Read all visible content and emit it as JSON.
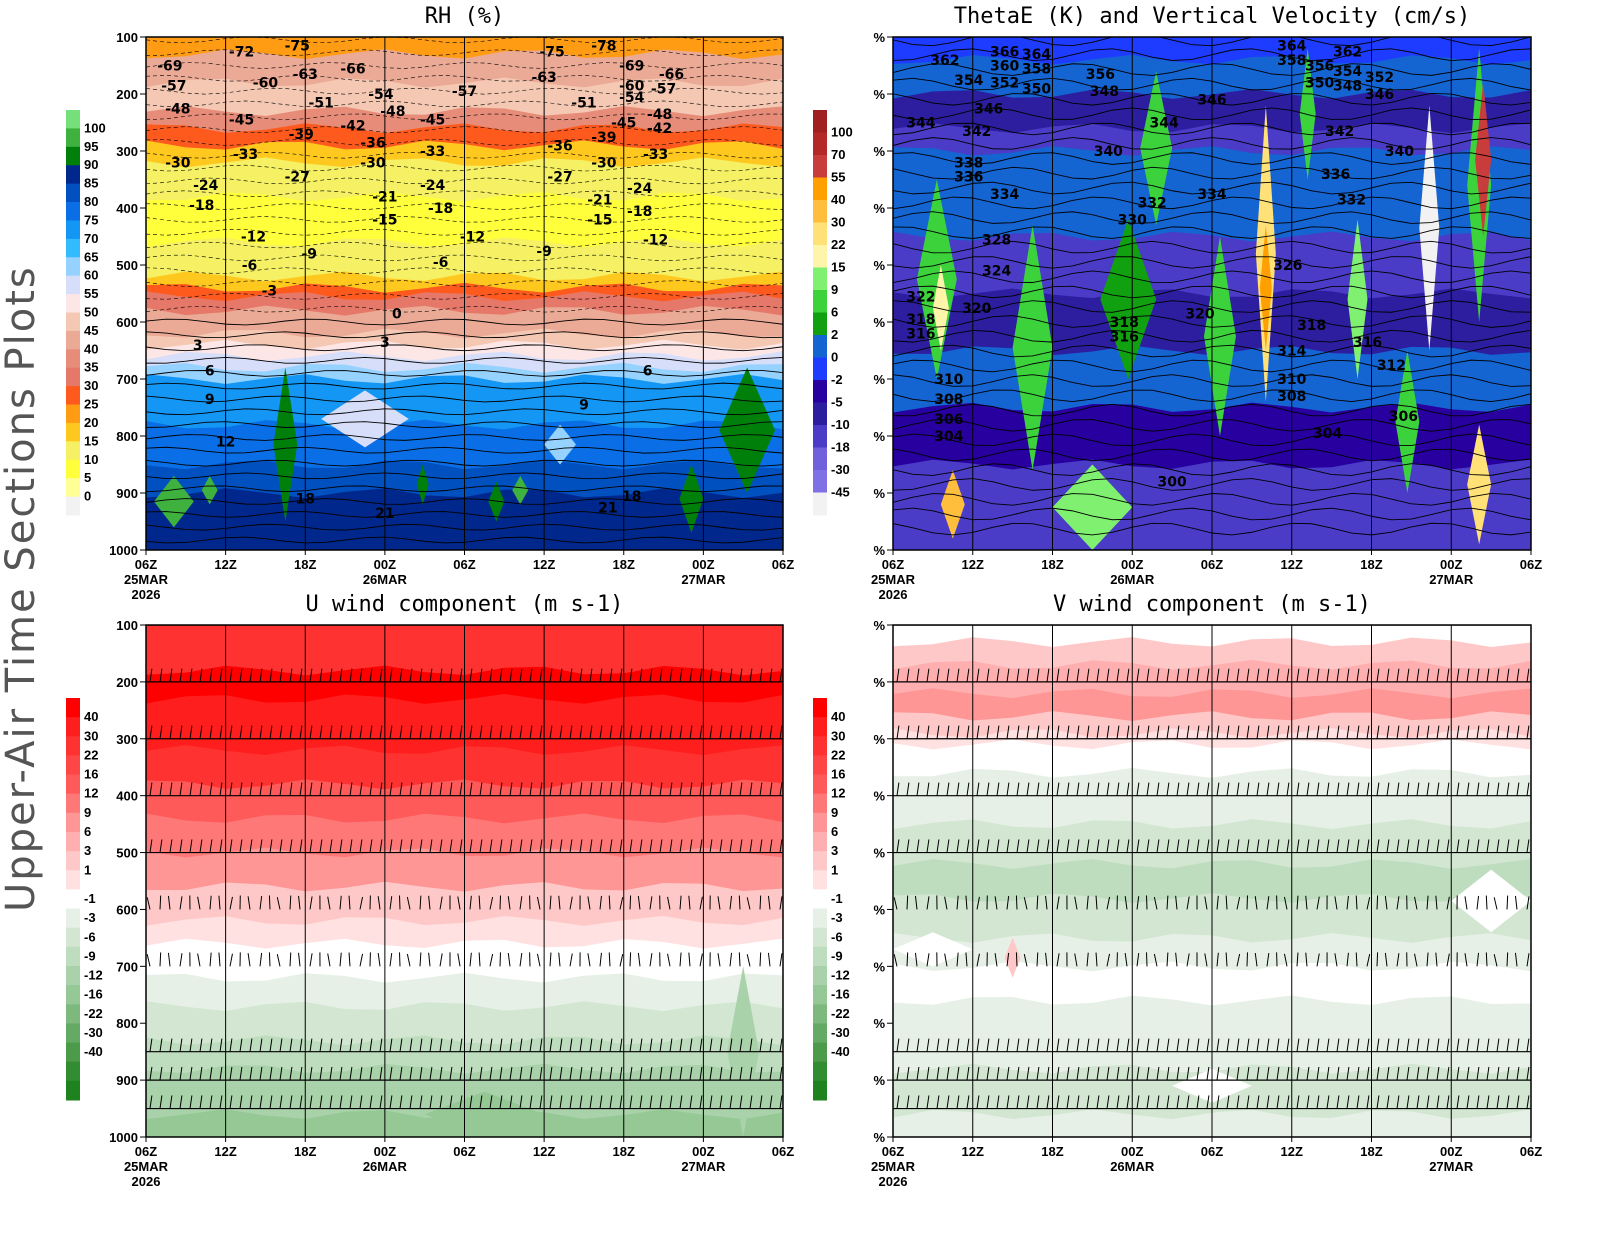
{
  "side_title": "Upper-Air Time Sections Plots",
  "chart_data": [
    {
      "type": "heatmap",
      "title": "RH (%)",
      "y_ticks": [
        "100",
        "200",
        "300",
        "400",
        "500",
        "600",
        "700",
        "800",
        "900",
        "1000"
      ],
      "ylim": [
        100,
        1000
      ],
      "x_ticks": [
        [
          "06Z",
          "25MAR",
          "2026"
        ],
        [
          "12Z"
        ],
        [
          "18Z"
        ],
        [
          "00Z",
          "26MAR"
        ],
        [
          "06Z"
        ],
        [
          "12Z"
        ],
        [
          "18Z"
        ],
        [
          "00Z",
          "27MAR"
        ],
        [
          "06Z"
        ]
      ],
      "colorbar": {
        "levels": [
          "100",
          "95",
          "90",
          "85",
          "80",
          "75",
          "70",
          "65",
          "60",
          "55",
          "50",
          "45",
          "40",
          "35",
          "30",
          "25",
          "20",
          "15",
          "10",
          "5",
          "0"
        ],
        "colors": [
          "#75e07a",
          "#3fb13f",
          "#00800a",
          "#00288c",
          "#0050c0",
          "#0a6fe6",
          "#1496f5",
          "#32bbff",
          "#96d2ff",
          "#d6defa",
          "#fde6e6",
          "#f5c8b4",
          "#ebaa96",
          "#e68c78",
          "#e6786a",
          "#ff5a1e",
          "#ff9c14",
          "#ffc81e",
          "#f5f064",
          "#ffff3c",
          "#ffff96",
          "#f2f2f2"
        ]
      },
      "contour_labels": [
        {
          "t": 0.3,
          "p": 150,
          "v": "-69"
        },
        {
          "t": 1.2,
          "p": 125,
          "v": "-72"
        },
        {
          "t": 1.9,
          "p": 115,
          "v": "-75"
        },
        {
          "t": 1.5,
          "p": 180,
          "v": "-60"
        },
        {
          "t": 2.0,
          "p": 165,
          "v": "-63"
        },
        {
          "t": 2.6,
          "p": 155,
          "v": "-66"
        },
        {
          "t": 0.35,
          "p": 185,
          "v": "-57"
        },
        {
          "t": 0.4,
          "p": 225,
          "v": "-48"
        },
        {
          "t": 2.2,
          "p": 215,
          "v": "-51"
        },
        {
          "t": 2.95,
          "p": 200,
          "v": "-54"
        },
        {
          "t": 3.1,
          "p": 230,
          "v": "-48"
        },
        {
          "t": 1.2,
          "p": 245,
          "v": "-45"
        },
        {
          "t": 2.6,
          "p": 255,
          "v": "-42"
        },
        {
          "t": 3.6,
          "p": 245,
          "v": "-45"
        },
        {
          "t": 4.0,
          "p": 195,
          "v": "-57"
        },
        {
          "t": 5.1,
          "p": 125,
          "v": "-75"
        },
        {
          "t": 5.75,
          "p": 115,
          "v": "-78"
        },
        {
          "t": 5.0,
          "p": 170,
          "v": "-63"
        },
        {
          "t": 6.1,
          "p": 150,
          "v": "-69"
        },
        {
          "t": 5.5,
          "p": 215,
          "v": "-51"
        },
        {
          "t": 6.1,
          "p": 185,
          "v": "-60"
        },
        {
          "t": 6.1,
          "p": 205,
          "v": "-54"
        },
        {
          "t": 6.5,
          "p": 190,
          "v": "-57"
        },
        {
          "t": 6.6,
          "p": 165,
          "v": "-66"
        },
        {
          "t": 6.45,
          "p": 235,
          "v": "-48"
        },
        {
          "t": 6.0,
          "p": 250,
          "v": "-45"
        },
        {
          "t": 6.45,
          "p": 260,
          "v": "-42"
        },
        {
          "t": 0.4,
          "p": 320,
          "v": "-30"
        },
        {
          "t": 1.25,
          "p": 305,
          "v": "-33"
        },
        {
          "t": 1.95,
          "p": 270,
          "v": "-39"
        },
        {
          "t": 2.85,
          "p": 285,
          "v": "-36"
        },
        {
          "t": 2.85,
          "p": 320,
          "v": "-30"
        },
        {
          "t": 3.6,
          "p": 300,
          "v": "-33"
        },
        {
          "t": 5.2,
          "p": 290,
          "v": "-36"
        },
        {
          "t": 5.75,
          "p": 275,
          "v": "-39"
        },
        {
          "t": 5.75,
          "p": 320,
          "v": "-30"
        },
        {
          "t": 6.4,
          "p": 305,
          "v": "-33"
        },
        {
          "t": 0.75,
          "p": 360,
          "v": "-24"
        },
        {
          "t": 1.9,
          "p": 345,
          "v": "-27"
        },
        {
          "t": 3.0,
          "p": 380,
          "v": "-21"
        },
        {
          "t": 3.6,
          "p": 360,
          "v": "-24"
        },
        {
          "t": 5.2,
          "p": 345,
          "v": "-27"
        },
        {
          "t": 5.7,
          "p": 385,
          "v": "-21"
        },
        {
          "t": 6.2,
          "p": 365,
          "v": "-24"
        },
        {
          "t": 0.7,
          "p": 395,
          "v": "-18"
        },
        {
          "t": 3.0,
          "p": 420,
          "v": "-15"
        },
        {
          "t": 3.7,
          "p": 400,
          "v": "-18"
        },
        {
          "t": 5.7,
          "p": 420,
          "v": "-15"
        },
        {
          "t": 6.2,
          "p": 405,
          "v": "-18"
        },
        {
          "t": 1.35,
          "p": 450,
          "v": "-12"
        },
        {
          "t": 2.05,
          "p": 480,
          "v": "-9"
        },
        {
          "t": 4.1,
          "p": 450,
          "v": "-12"
        },
        {
          "t": 5.0,
          "p": 475,
          "v": "-9"
        },
        {
          "t": 6.4,
          "p": 455,
          "v": "-12"
        },
        {
          "t": 1.3,
          "p": 500,
          "v": "-6"
        },
        {
          "t": 3.7,
          "p": 495,
          "v": "-6"
        },
        {
          "t": 1.55,
          "p": 545,
          "v": "-3"
        },
        {
          "t": 3.15,
          "p": 585,
          "v": "0"
        },
        {
          "t": 0.65,
          "p": 640,
          "v": "3"
        },
        {
          "t": 3.0,
          "p": 635,
          "v": "3"
        },
        {
          "t": 0.8,
          "p": 685,
          "v": "6"
        },
        {
          "t": 6.3,
          "p": 685,
          "v": "6"
        },
        {
          "t": 0.8,
          "p": 735,
          "v": "9"
        },
        {
          "t": 5.5,
          "p": 745,
          "v": "9"
        },
        {
          "t": 1.0,
          "p": 810,
          "v": "12"
        },
        {
          "t": 2.0,
          "p": 910,
          "v": "18"
        },
        {
          "t": 6.1,
          "p": 905,
          "v": "18"
        },
        {
          "t": 3.0,
          "p": 935,
          "v": "21"
        },
        {
          "t": 5.8,
          "p": 925,
          "v": "21"
        }
      ]
    },
    {
      "type": "heatmap",
      "title": "ThetaE (K) and Vertical Velocity (cm/s)",
      "y_ticks": [
        "%",
        "%",
        "%",
        "%",
        "%",
        "%",
        "%",
        "%",
        "%",
        "%"
      ],
      "ylim": [
        100,
        1000
      ],
      "x_ticks": [
        [
          "06Z",
          "25MAR",
          "2026"
        ],
        [
          "12Z"
        ],
        [
          "18Z"
        ],
        [
          "00Z",
          "26MAR"
        ],
        [
          "06Z"
        ],
        [
          "12Z"
        ],
        [
          "18Z"
        ],
        [
          "00Z",
          "27MAR"
        ],
        [
          "06Z"
        ]
      ],
      "colorbar": {
        "levels": [
          "100",
          "70",
          "55",
          "40",
          "30",
          "22",
          "15",
          "9",
          "6",
          "2",
          "0",
          "-2",
          "-5",
          "-10",
          "-18",
          "-30",
          "-45"
        ],
        "colors": [
          "#a02020",
          "#b42828",
          "#c83c3c",
          "#ffa000",
          "#ffbe3c",
          "#ffe178",
          "#fff5aa",
          "#80f070",
          "#3cd23c",
          "#10a010",
          "#1464d2",
          "#1e3cff",
          "#2800a0",
          "#2d1ea0",
          "#4b3cc8",
          "#7060dc",
          "#8070e6",
          "#f2f2f2"
        ]
      },
      "contour_labels": [
        {
          "t": 0.65,
          "p": 140,
          "v": "362"
        },
        {
          "t": 1.4,
          "p": 125,
          "v": "366"
        },
        {
          "t": 1.8,
          "p": 130,
          "v": "364"
        },
        {
          "t": 1.4,
          "p": 150,
          "v": "360"
        },
        {
          "t": 1.8,
          "p": 155,
          "v": "358"
        },
        {
          "t": 0.95,
          "p": 175,
          "v": "354"
        },
        {
          "t": 1.4,
          "p": 180,
          "v": "352"
        },
        {
          "t": 1.8,
          "p": 190,
          "v": "350"
        },
        {
          "t": 2.6,
          "p": 165,
          "v": "356"
        },
        {
          "t": 2.65,
          "p": 195,
          "v": "348"
        },
        {
          "t": 1.2,
          "p": 225,
          "v": "346"
        },
        {
          "t": 0.35,
          "p": 250,
          "v": "344"
        },
        {
          "t": 1.05,
          "p": 265,
          "v": "342"
        },
        {
          "t": 3.4,
          "p": 250,
          "v": "344"
        },
        {
          "t": 2.7,
          "p": 300,
          "v": "340"
        },
        {
          "t": 0.95,
          "p": 320,
          "v": "338"
        },
        {
          "t": 0.95,
          "p": 345,
          "v": "336"
        },
        {
          "t": 1.4,
          "p": 375,
          "v": "334"
        },
        {
          "t": 4.0,
          "p": 210,
          "v": "346"
        },
        {
          "t": 5.0,
          "p": 115,
          "v": "364"
        },
        {
          "t": 5.0,
          "p": 140,
          "v": "358"
        },
        {
          "t": 5.35,
          "p": 150,
          "v": "356"
        },
        {
          "t": 5.7,
          "p": 125,
          "v": "362"
        },
        {
          "t": 5.7,
          "p": 160,
          "v": "354"
        },
        {
          "t": 6.1,
          "p": 170,
          "v": "352"
        },
        {
          "t": 5.35,
          "p": 180,
          "v": "350"
        },
        {
          "t": 5.7,
          "p": 185,
          "v": "348"
        },
        {
          "t": 6.1,
          "p": 200,
          "v": "346"
        },
        {
          "t": 5.6,
          "p": 265,
          "v": "342"
        },
        {
          "t": 6.35,
          "p": 300,
          "v": "340"
        },
        {
          "t": 5.55,
          "p": 340,
          "v": "336"
        },
        {
          "t": 5.75,
          "p": 385,
          "v": "332"
        },
        {
          "t": 3.25,
          "p": 390,
          "v": "332"
        },
        {
          "t": 3.0,
          "p": 420,
          "v": "330"
        },
        {
          "t": 4.0,
          "p": 375,
          "v": "334"
        },
        {
          "t": 1.3,
          "p": 455,
          "v": "328"
        },
        {
          "t": 1.3,
          "p": 510,
          "v": "324"
        },
        {
          "t": 0.35,
          "p": 555,
          "v": "322"
        },
        {
          "t": 1.05,
          "p": 575,
          "v": "320"
        },
        {
          "t": 0.35,
          "p": 595,
          "v": "318"
        },
        {
          "t": 0.35,
          "p": 620,
          "v": "316"
        },
        {
          "t": 4.95,
          "p": 500,
          "v": "326"
        },
        {
          "t": 3.85,
          "p": 585,
          "v": "320"
        },
        {
          "t": 2.9,
          "p": 600,
          "v": "318"
        },
        {
          "t": 2.9,
          "p": 625,
          "v": "316"
        },
        {
          "t": 5.25,
          "p": 605,
          "v": "318"
        },
        {
          "t": 5.0,
          "p": 650,
          "v": "314"
        },
        {
          "t": 5.95,
          "p": 635,
          "v": "316"
        },
        {
          "t": 6.25,
          "p": 675,
          "v": "312"
        },
        {
          "t": 0.7,
          "p": 700,
          "v": "310"
        },
        {
          "t": 0.7,
          "p": 735,
          "v": "308"
        },
        {
          "t": 0.7,
          "p": 770,
          "v": "306"
        },
        {
          "t": 0.7,
          "p": 800,
          "v": "304"
        },
        {
          "t": 5.0,
          "p": 700,
          "v": "310"
        },
        {
          "t": 5.0,
          "p": 730,
          "v": "308"
        },
        {
          "t": 5.45,
          "p": 795,
          "v": "304"
        },
        {
          "t": 6.4,
          "p": 765,
          "v": "306"
        },
        {
          "t": 3.5,
          "p": 880,
          "v": "300"
        }
      ]
    },
    {
      "type": "heatmap",
      "title": "U wind component (m s-1)",
      "y_ticks": [
        "100",
        "200",
        "300",
        "400",
        "500",
        "600",
        "700",
        "800",
        "900",
        "1000"
      ],
      "ylim": [
        100,
        1000
      ],
      "x_ticks": [
        [
          "06Z",
          "25MAR",
          "2026"
        ],
        [
          "12Z"
        ],
        [
          "18Z"
        ],
        [
          "00Z",
          "26MAR"
        ],
        [
          "06Z"
        ],
        [
          "12Z"
        ],
        [
          "18Z"
        ],
        [
          "00Z",
          "27MAR"
        ],
        [
          "06Z"
        ]
      ],
      "colorbar": {
        "levels": [
          "40",
          "30",
          "22",
          "16",
          "12",
          "9",
          "6",
          "3",
          "1",
          "-1",
          "-3",
          "-6",
          "-9",
          "-12",
          "-16",
          "-22",
          "-30",
          "-40"
        ],
        "colors": [
          "#ff0000",
          "#ff1e1e",
          "#ff3232",
          "#ff4646",
          "#ff5a5a",
          "#ff7878",
          "#ff9696",
          "#ffafaf",
          "#ffc8c8",
          "#ffe1e1",
          "#ffffff",
          "#e6f0e6",
          "#d2e6d2",
          "#bedcbe",
          "#aad2aa",
          "#96c896",
          "#7db97d",
          "#64aa64",
          "#4b9b4b",
          "#328c32",
          "#1e821e"
        ]
      }
    },
    {
      "type": "heatmap",
      "title": "V wind component (m s-1)",
      "y_ticks": [
        "%",
        "%",
        "%",
        "%",
        "%",
        "%",
        "%",
        "%",
        "%",
        "%"
      ],
      "ylim": [
        100,
        1000
      ],
      "x_ticks": [
        [
          "06Z",
          "25MAR",
          "2026"
        ],
        [
          "12Z"
        ],
        [
          "18Z"
        ],
        [
          "00Z",
          "26MAR"
        ],
        [
          "06Z"
        ],
        [
          "12Z"
        ],
        [
          "18Z"
        ],
        [
          "00Z",
          "27MAR"
        ],
        [
          "06Z"
        ]
      ],
      "colorbar": {
        "levels": [
          "40",
          "30",
          "22",
          "16",
          "12",
          "9",
          "6",
          "3",
          "1",
          "-1",
          "-3",
          "-6",
          "-9",
          "-12",
          "-16",
          "-22",
          "-30",
          "-40"
        ],
        "colors": [
          "#ff0000",
          "#ff1e1e",
          "#ff3232",
          "#ff4646",
          "#ff5a5a",
          "#ff7878",
          "#ff9696",
          "#ffafaf",
          "#ffc8c8",
          "#ffe1e1",
          "#ffffff",
          "#e6f0e6",
          "#d2e6d2",
          "#bedcbe",
          "#aad2aa",
          "#96c896",
          "#7db97d",
          "#64aa64",
          "#4b9b4b",
          "#328c32",
          "#1e821e"
        ]
      }
    }
  ]
}
